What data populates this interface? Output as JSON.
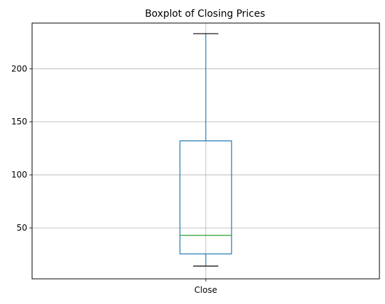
{
  "chart_data": {
    "type": "box",
    "title": "Boxplot of Closing Prices",
    "xlabel": "",
    "ylabel": "",
    "categories": [
      "Close"
    ],
    "boxes": [
      {
        "name": "Close",
        "whisker_low": 14,
        "q1": 25.5,
        "median": 43,
        "q3": 132,
        "whisker_high": 233
      }
    ],
    "yticks": [
      50,
      100,
      150,
      200
    ],
    "ylim": [
      2,
      243
    ],
    "grid": true,
    "colors": {
      "box": "#1f77b4",
      "median": "#2ca02c",
      "whisker_cap": "#000000",
      "grid": "#b0b0b0",
      "axes": "#000000"
    }
  }
}
